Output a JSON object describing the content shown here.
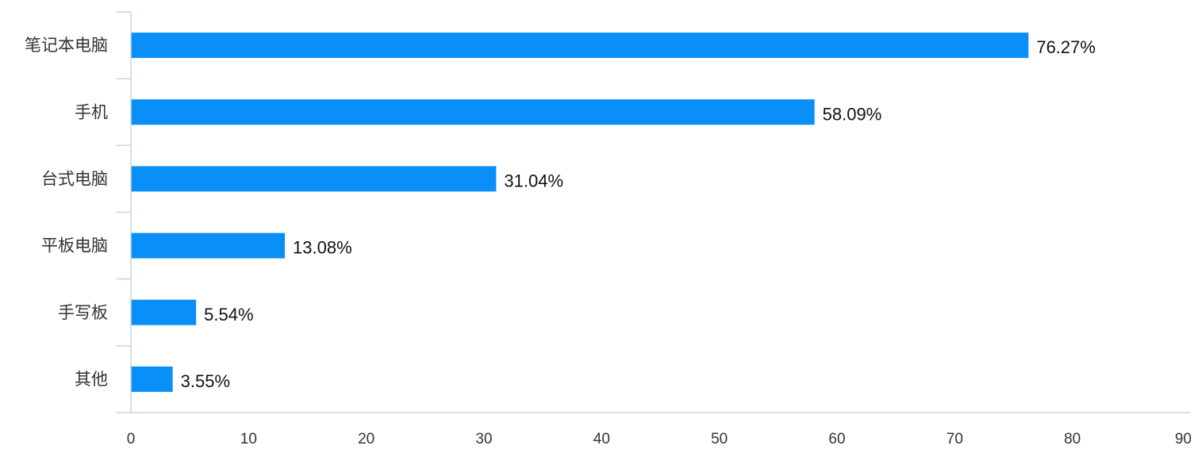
{
  "chart_data": {
    "type": "bar",
    "orientation": "horizontal",
    "categories": [
      "笔记本电脑",
      "手机",
      "台式电脑",
      "平板电脑",
      "手写板",
      "其他"
    ],
    "values": [
      76.27,
      58.09,
      31.04,
      13.08,
      5.54,
      3.55
    ],
    "data_labels": [
      "76.27%",
      "58.09%",
      "31.04%",
      "13.08%",
      "5.54%",
      "3.55%"
    ],
    "xlim": [
      0,
      90
    ],
    "xticks": [
      0,
      10,
      20,
      30,
      40,
      50,
      60,
      70,
      80,
      90
    ],
    "bar_color": "#0a8ff8",
    "axis_color": "#c9d3e0",
    "grid": false,
    "legend": "none"
  }
}
